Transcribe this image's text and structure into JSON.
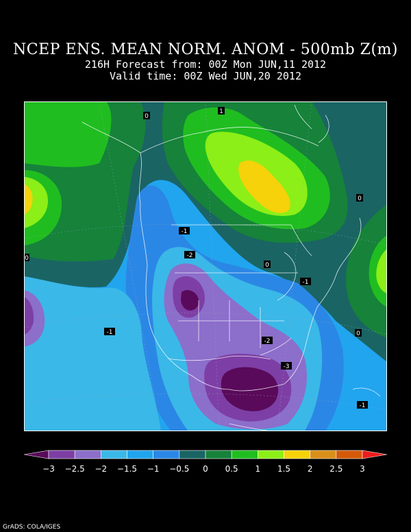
{
  "header": {
    "title": "NCEP ENS. MEAN NORM. ANOM - 500mb Z(m)",
    "forecast_line": "216H Forecast from: 00Z Mon JUN,11 2012",
    "valid_line": "Valid time: 00Z Wed JUN,20 2012"
  },
  "map": {
    "contour_labels": [
      "0",
      "1",
      "0",
      "0",
      "-1",
      "-2",
      "0",
      "-1",
      "-1",
      "-2",
      "-3",
      "0",
      "-1"
    ]
  },
  "colorbar": {
    "tick_labels": [
      "-3",
      "-2.5",
      "-2",
      "-1.5",
      "-1",
      "-0.5",
      "0",
      "0.5",
      "1",
      "1.5",
      "2",
      "2.5",
      "3"
    ],
    "colors": [
      "#5a0a5a",
      "#7d3fa5",
      "#8c6ecb",
      "#3ab8e8",
      "#21a5ef",
      "#2b87e5",
      "#1a6464",
      "#16823a",
      "#20bd20",
      "#8cef17",
      "#f5d20a",
      "#d9901a",
      "#d45a0a",
      "#ee1c1c"
    ]
  },
  "footer": {
    "credit": "GrADS: COLA/IGES"
  }
}
